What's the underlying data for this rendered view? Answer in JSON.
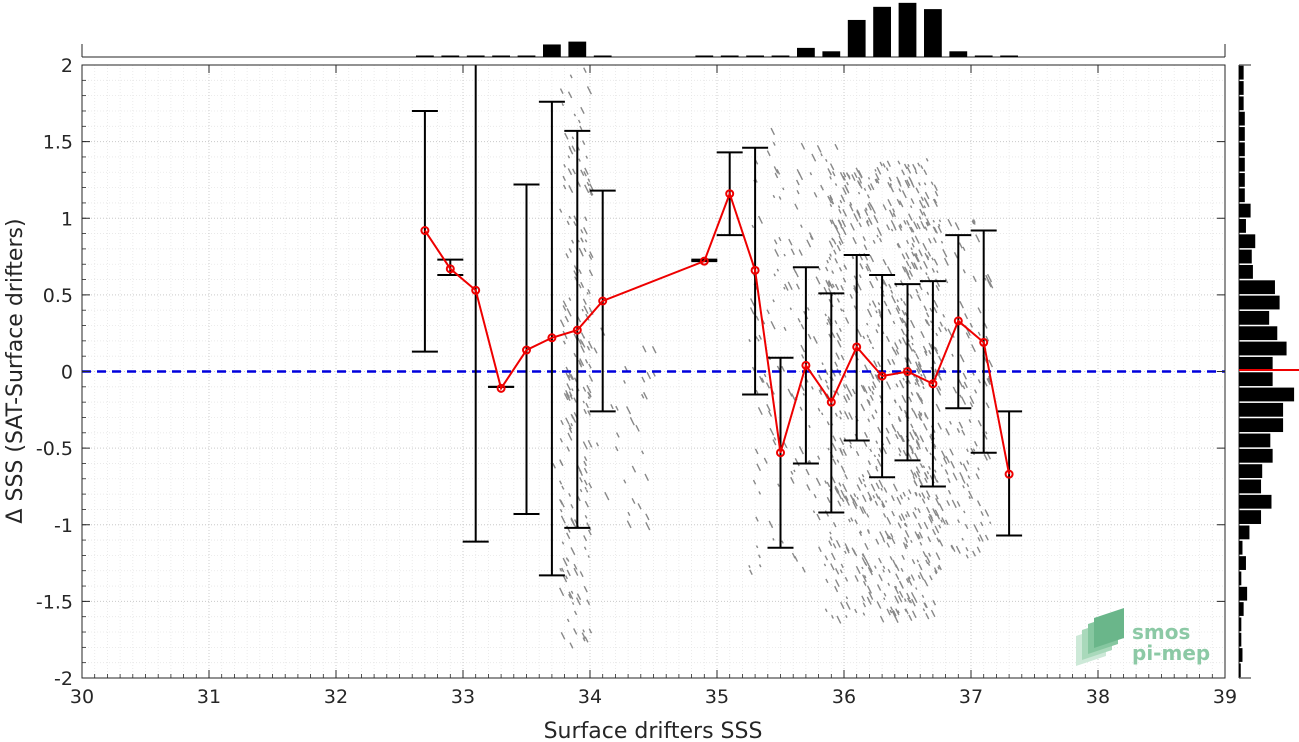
{
  "chart_data": {
    "type": "scatter",
    "xlabel": "Surface drifters SSS",
    "ylabel": "Δ SSS (SAT-Surface drifters)",
    "xlim": [
      30,
      39
    ],
    "ylim": [
      -2,
      2
    ],
    "x_ticks": [
      "30",
      "31",
      "32",
      "33",
      "34",
      "35",
      "36",
      "37",
      "38",
      "39"
    ],
    "y_ticks": [
      "2",
      "1.5",
      "1",
      "0.5",
      "0",
      "-0.5",
      "-1",
      "-1.5",
      "-2"
    ],
    "grid": true,
    "reference_line": {
      "y": 0,
      "color": "#0000dd",
      "style": "dashed"
    },
    "binned_mean": {
      "color": "#ee0000",
      "x": [
        32.7,
        32.9,
        33.1,
        33.3,
        33.5,
        33.7,
        33.9,
        34.1,
        34.9,
        35.1,
        35.3,
        35.5,
        35.7,
        35.9,
        36.1,
        36.3,
        36.5,
        36.7,
        36.9,
        37.1,
        37.3
      ],
      "mean": [
        0.92,
        0.67,
        0.53,
        -0.11,
        0.14,
        0.22,
        0.27,
        0.46,
        0.72,
        1.16,
        0.66,
        -0.53,
        0.04,
        -0.2,
        0.16,
        -0.03,
        0.0,
        -0.08,
        0.33,
        0.19,
        -0.67
      ],
      "upper": [
        1.7,
        0.73,
        2.04,
        -0.1,
        1.22,
        1.76,
        1.57,
        1.18,
        0.73,
        1.43,
        1.46,
        0.09,
        0.68,
        0.51,
        0.76,
        0.63,
        0.57,
        0.59,
        0.89,
        0.92,
        -0.26
      ],
      "lower": [
        0.13,
        0.63,
        -1.11,
        -0.1,
        -0.93,
        -1.33,
        -1.02,
        -0.26,
        0.72,
        0.89,
        -0.15,
        -1.15,
        -0.6,
        -0.92,
        -0.45,
        -0.69,
        -0.58,
        -0.75,
        -0.24,
        -0.53,
        -1.07
      ]
    },
    "top_histogram": {
      "bin_centers": [
        32.7,
        32.9,
        33.1,
        33.3,
        33.5,
        33.7,
        33.9,
        34.1,
        34.9,
        35.1,
        35.3,
        35.5,
        35.7,
        35.9,
        36.1,
        36.3,
        36.5,
        36.7,
        36.9,
        37.1,
        37.3
      ],
      "counts": [
        0.01,
        0.01,
        0.01,
        0.01,
        0.01,
        0.22,
        0.27,
        0.01,
        0.01,
        0.01,
        0.01,
        0.01,
        0.16,
        0.1,
        0.65,
        0.88,
        0.95,
        0.84,
        0.1,
        0.01,
        0.01
      ]
    },
    "right_histogram": {
      "bin_centers": [
        1.95,
        1.85,
        1.75,
        1.65,
        1.55,
        1.45,
        1.35,
        1.25,
        1.15,
        1.05,
        0.95,
        0.85,
        0.75,
        0.65,
        0.55,
        0.45,
        0.35,
        0.25,
        0.15,
        0.05,
        -0.05,
        -0.15,
        -0.25,
        -0.35,
        -0.45,
        -0.55,
        -0.65,
        -0.75,
        -0.85,
        -0.95,
        -1.05,
        -1.15,
        -1.25,
        -1.35,
        -1.45,
        -1.55,
        -1.65,
        -1.75,
        -1.85,
        -1.95
      ],
      "counts": [
        0.08,
        0.08,
        0.08,
        0.1,
        0.1,
        0.1,
        0.1,
        0.1,
        0.1,
        0.2,
        0.12,
        0.28,
        0.22,
        0.24,
        0.62,
        0.7,
        0.52,
        0.66,
        0.82,
        0.58,
        0.58,
        0.95,
        0.76,
        0.76,
        0.54,
        0.58,
        0.4,
        0.38,
        0.56,
        0.38,
        0.18,
        0.06,
        0.12,
        0.04,
        0.14,
        0.08,
        0.04,
        0.04,
        0.06,
        0.03
      ],
      "mean_marker": {
        "y": 0.01,
        "color": "#ee0000"
      }
    },
    "scatter_color": "#888888"
  },
  "logo": {
    "line1": "smos",
    "line2": "pi-mep",
    "color": "#8cc9a5"
  }
}
